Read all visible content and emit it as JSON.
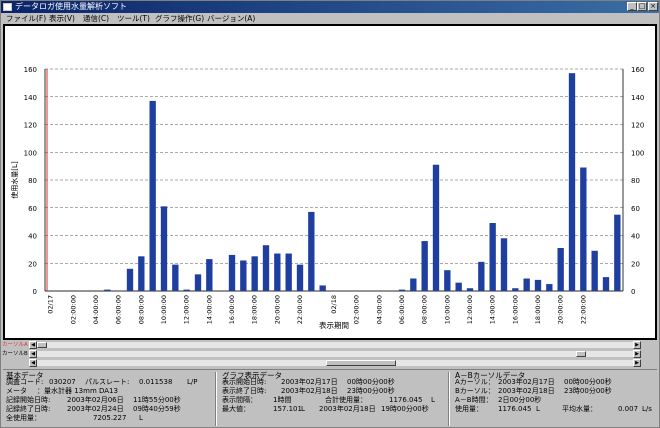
{
  "window": {
    "title": "データロガ使用水量解析ソフト",
    "buttons": [
      "_",
      "□",
      "×"
    ]
  },
  "menu": [
    "ファイル(F)",
    "表示(V)",
    "通信(C)",
    "ツール(T)",
    "グラフ操作(G)",
    "バージョン(A)"
  ],
  "chart_data": {
    "type": "bar",
    "ylabel": "使用水量[L]",
    "xlabel": "表示期間",
    "ylim": [
      0,
      160
    ],
    "yticks": [
      0,
      20,
      40,
      60,
      80,
      100,
      120,
      140,
      160
    ],
    "grid": true,
    "bar_color": "#1f3fa0",
    "cursor_color": "#e03030",
    "series": [
      {
        "values": [
          0,
          0,
          0,
          0,
          0,
          1,
          0,
          16,
          25,
          137,
          61,
          19,
          1,
          12,
          23,
          0,
          26,
          22,
          25,
          33,
          27,
          27,
          19,
          57,
          4,
          0,
          0,
          0,
          0,
          0,
          0,
          1,
          9,
          36,
          91,
          15,
          6,
          2,
          21,
          49,
          38,
          2,
          9,
          8,
          5,
          31,
          157,
          89,
          29,
          10,
          55
        ]
      }
    ],
    "xtick_labels": [
      "02/17",
      "02:00:00",
      "04:00:00",
      "06:00:00",
      "08:00:00",
      "10:00:00",
      "12:00:00",
      "14:00:00",
      "16:00:00",
      "18:00:00",
      "20:00:00",
      "22:00:00",
      "02/18",
      "02:00:00",
      "04:00:00",
      "06:00:00",
      "08:00:00",
      "10:00:00",
      "12:00:00",
      "14:00:00",
      "16:00:00",
      "18:00:00",
      "20:00:00",
      "22:00:00"
    ]
  },
  "scrollbars": {
    "cursor_a_label": "カーソルA",
    "cursor_b_label": "カーソルB",
    "cursor_a_pos": 0.0,
    "cursor_b_pos": 0.92,
    "main_pos": 0.55
  },
  "info": {
    "basic": {
      "header": "基本データ",
      "rows": [
        [
          "調査コード:",
          "030207",
          "パルスレート:",
          "0.011538",
          "L/P"
        ],
        [
          "メータ",
          "：量水計器 13mm DA13"
        ],
        [
          "記録開始日時:",
          "2003年02月06日",
          "11時55分00秒"
        ],
        [
          "記録終了日時:",
          "2003年02月24日",
          "09時40分59秒"
        ],
        [
          "全使用量：",
          "7205.227",
          "L"
        ]
      ]
    },
    "graph": {
      "header": "グラフ表示データ",
      "rows": [
        [
          "表示開始日時:",
          "2003年02月17日",
          "00時00分00秒"
        ],
        [
          "表示終了日時:",
          "2003年02月18日",
          "23時00分00秒"
        ],
        [
          "表示間隔：",
          "1時間",
          "合計使用量：",
          "1176.045",
          "L"
        ],
        [
          "最大値：",
          "157.101",
          "L",
          "2003年02月18日",
          "19時00分00秒"
        ]
      ]
    },
    "ab": {
      "header": "A－Bカーソルデータ",
      "rows": [
        [
          "Aカーソル：",
          "2003年02月17日",
          "00時00分00秒"
        ],
        [
          "Bカーソル：",
          "2003年02月18日",
          "23時00分00秒"
        ],
        [
          "A－B時間：",
          "2日00分00秒"
        ],
        [
          "使用量：",
          "1176.045",
          "L",
          "平均水量：",
          "0.007",
          "L/s"
        ]
      ]
    }
  }
}
